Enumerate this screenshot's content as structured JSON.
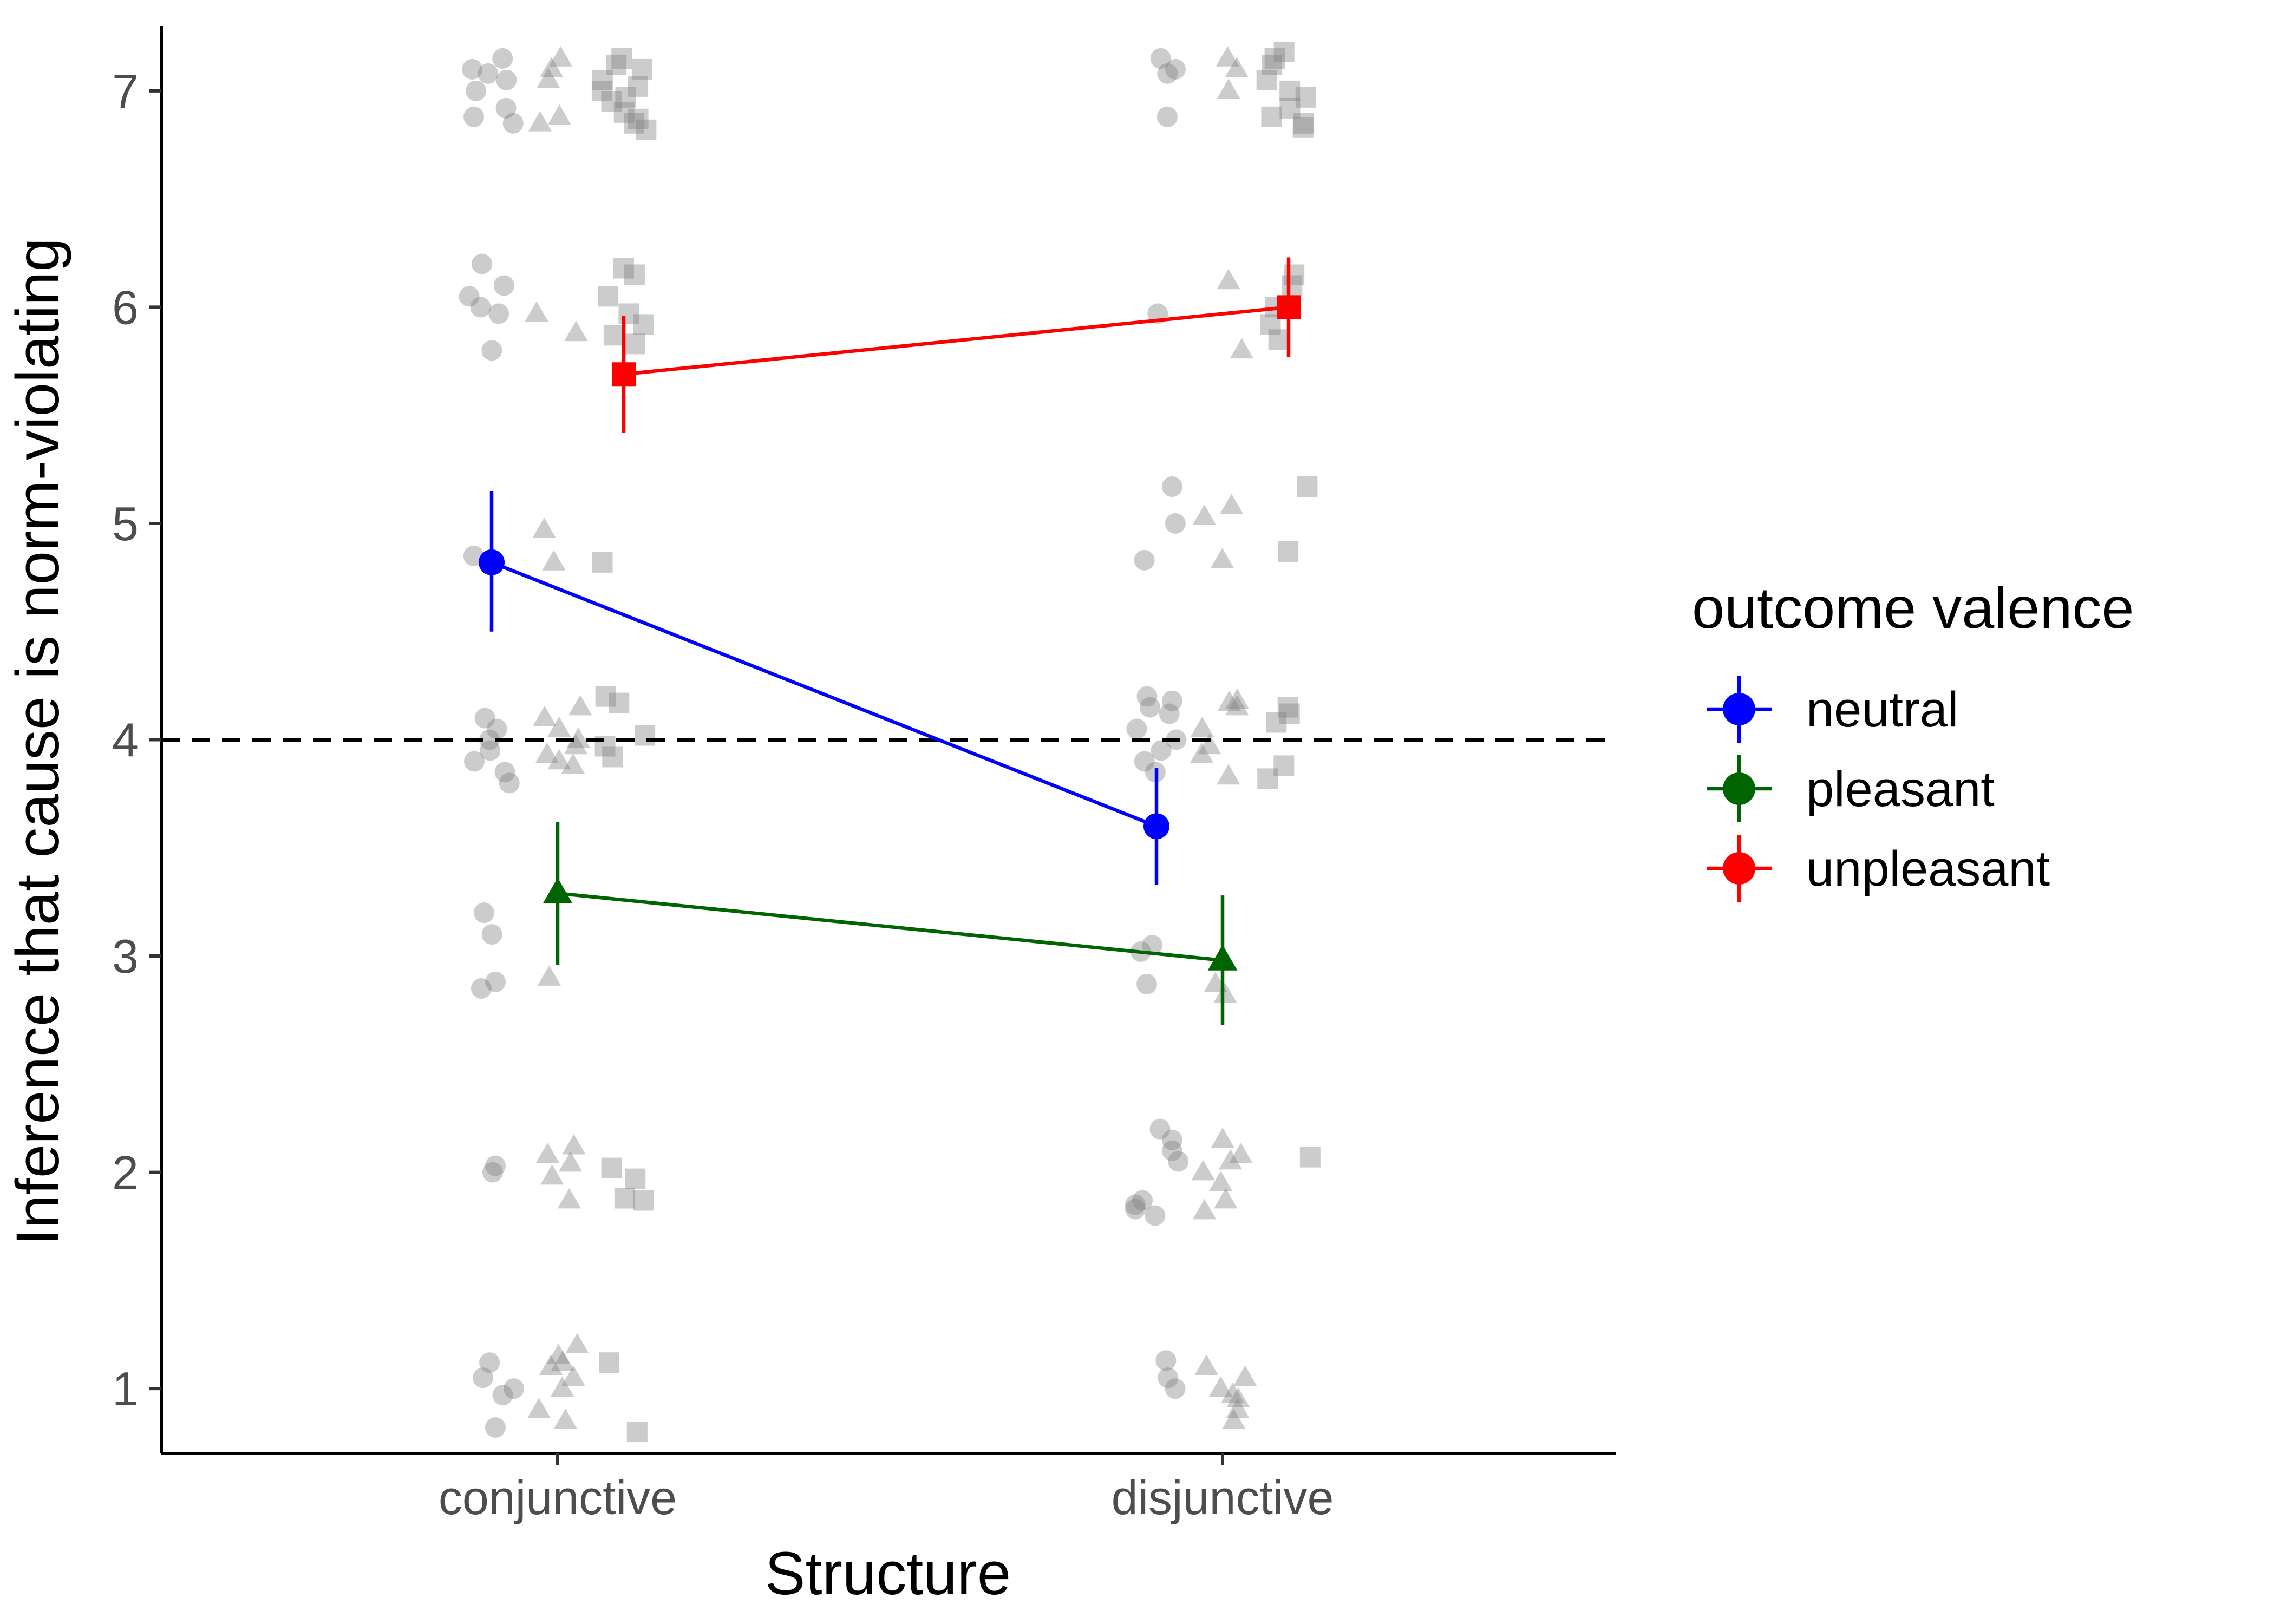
{
  "chart_data": {
    "type": "point-range-line",
    "xlabel": "Structure",
    "ylabel": "Inference that cause is norm-violating",
    "categories": [
      "conjunctive",
      "disjunctive"
    ],
    "ylim": [
      0.7,
      7.3
    ],
    "yticks": [
      1,
      2,
      3,
      4,
      5,
      6,
      7
    ],
    "grid": false,
    "reference_line": {
      "y": 4,
      "style": "dashed"
    },
    "legend": {
      "title": "outcome valence",
      "position": "right",
      "entries": [
        "neutral",
        "pleasant",
        "unpleasant"
      ]
    },
    "series": [
      {
        "name": "neutral",
        "color": "#0000ff",
        "shape": "circle",
        "points": [
          {
            "category": "conjunctive",
            "mean": 4.82,
            "lower": 4.5,
            "upper": 5.15
          },
          {
            "category": "disjunctive",
            "mean": 3.6,
            "lower": 3.33,
            "upper": 3.87
          }
        ]
      },
      {
        "name": "pleasant",
        "color": "#006400",
        "shape": "triangle",
        "points": [
          {
            "category": "conjunctive",
            "mean": 3.29,
            "lower": 2.96,
            "upper": 3.62
          },
          {
            "category": "disjunctive",
            "mean": 2.98,
            "lower": 2.68,
            "upper": 3.28
          }
        ]
      },
      {
        "name": "unpleasant",
        "color": "#ff0000",
        "shape": "square",
        "points": [
          {
            "category": "conjunctive",
            "mean": 5.69,
            "lower": 5.42,
            "upper": 5.96
          },
          {
            "category": "disjunctive",
            "mean": 6.0,
            "lower": 5.77,
            "upper": 6.23
          }
        ]
      }
    ],
    "raw_points_color": "#808080",
    "raw_points": {
      "conjunctive": {
        "neutral": [
          7.15,
          7.1,
          7.08,
          7.05,
          7.0,
          6.92,
          6.88,
          6.85,
          6.2,
          6.1,
          6.05,
          6.0,
          5.97,
          5.8,
          4.85,
          4.1,
          4.05,
          4.0,
          3.95,
          3.9,
          3.85,
          3.8,
          3.2,
          3.1,
          2.88,
          2.85,
          2.03,
          2.0,
          1.12,
          1.05,
          1.0,
          0.97,
          0.82
        ],
        "pleasant": [
          7.15,
          7.1,
          7.05,
          6.88,
          6.85,
          5.97,
          5.88,
          4.97,
          4.82,
          4.15,
          4.1,
          4.05,
          4.0,
          3.97,
          3.93,
          3.9,
          3.88,
          2.9,
          2.12,
          2.08,
          2.04,
          1.98,
          1.87,
          1.2,
          1.15,
          1.12,
          1.1,
          1.05,
          1.0,
          0.9,
          0.85
        ],
        "unpleasant": [
          7.15,
          7.12,
          7.1,
          7.05,
          7.02,
          7.0,
          6.97,
          6.95,
          6.9,
          6.87,
          6.85,
          6.82,
          6.18,
          6.15,
          6.05,
          5.97,
          5.92,
          5.87,
          5.83,
          4.82,
          4.2,
          4.17,
          4.02,
          3.97,
          3.92,
          2.02,
          1.97,
          1.88,
          1.87,
          1.12,
          0.8
        ]
      },
      "disjunctive": {
        "neutral": [
          7.15,
          7.1,
          7.08,
          6.88,
          5.97,
          5.17,
          5.0,
          4.83,
          4.2,
          4.18,
          4.15,
          4.12,
          4.05,
          4.0,
          3.95,
          3.9,
          3.85,
          3.05,
          3.02,
          2.87,
          2.2,
          2.15,
          2.1,
          2.05,
          1.87,
          1.85,
          1.83,
          1.8,
          1.13,
          1.05,
          1.0
        ],
        "pleasant": [
          7.15,
          7.1,
          7.0,
          6.12,
          5.8,
          5.08,
          5.03,
          4.83,
          4.18,
          4.17,
          4.15,
          4.05,
          3.97,
          3.93,
          3.83,
          2.87,
          2.82,
          2.15,
          2.08,
          2.05,
          2.0,
          1.95,
          1.87,
          1.82,
          1.1,
          1.05,
          1.0,
          0.97,
          0.95,
          0.9,
          0.85
        ],
        "unpleasant": [
          7.18,
          7.15,
          7.12,
          7.05,
          7.0,
          6.97,
          6.92,
          6.88,
          6.85,
          6.83,
          6.15,
          6.1,
          6.0,
          5.92,
          5.85,
          5.17,
          4.87,
          4.15,
          4.12,
          4.08,
          3.88,
          3.82,
          2.07
        ]
      }
    }
  }
}
